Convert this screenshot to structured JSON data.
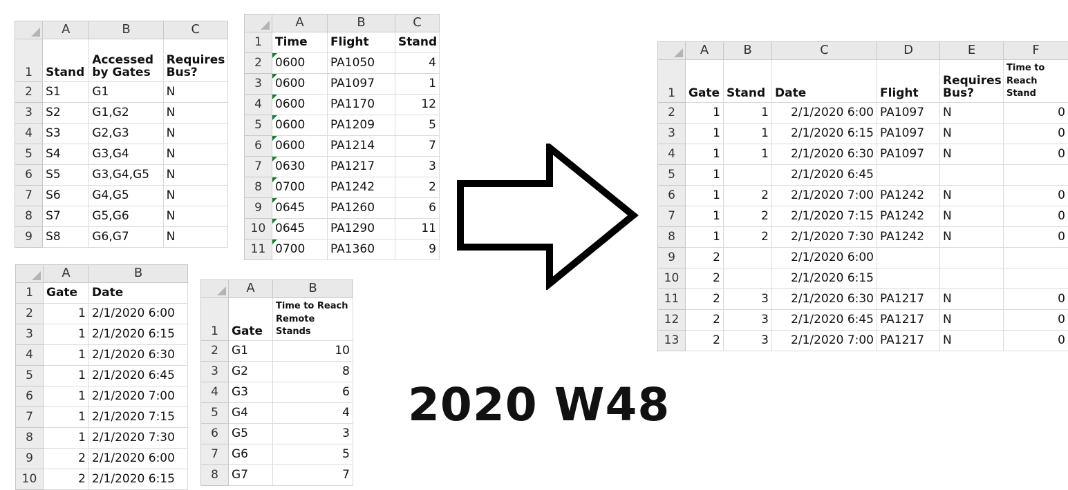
{
  "title": "2020 W48",
  "stands_table": {
    "columns": [
      "A",
      "B",
      "C"
    ],
    "header": [
      "Stand",
      "Accessed by Gates",
      "Requires Bus?"
    ],
    "rows": [
      [
        "S1",
        "G1",
        "N"
      ],
      [
        "S2",
        "G1,G2",
        "N"
      ],
      [
        "S3",
        "G2,G3",
        "N"
      ],
      [
        "S4",
        "G3,G4",
        "N"
      ],
      [
        "S5",
        "G3,G4,G5",
        "N"
      ],
      [
        "S6",
        "G4,G5",
        "N"
      ],
      [
        "S7",
        "G5,G6",
        "N"
      ],
      [
        "S8",
        "G6,G7",
        "N"
      ]
    ]
  },
  "flights_table": {
    "columns": [
      "A",
      "B",
      "C"
    ],
    "header": [
      "Time",
      "Flight",
      "Stand"
    ],
    "rows": [
      [
        "0600",
        "PA1050",
        "4"
      ],
      [
        "0600",
        "PA1097",
        "1"
      ],
      [
        "0600",
        "PA1170",
        "12"
      ],
      [
        "0600",
        "PA1209",
        "5"
      ],
      [
        "0600",
        "PA1214",
        "7"
      ],
      [
        "0630",
        "PA1217",
        "3"
      ],
      [
        "0700",
        "PA1242",
        "2"
      ],
      [
        "0645",
        "PA1260",
        "6"
      ],
      [
        "0645",
        "PA1290",
        "11"
      ],
      [
        "0700",
        "PA1360",
        "9"
      ]
    ]
  },
  "gates_table": {
    "columns": [
      "A",
      "B"
    ],
    "header": [
      "Gate",
      "Date"
    ],
    "rows": [
      [
        "1",
        "2/1/2020 6:00"
      ],
      [
        "1",
        "2/1/2020 6:15"
      ],
      [
        "1",
        "2/1/2020 6:30"
      ],
      [
        "1",
        "2/1/2020 6:45"
      ],
      [
        "1",
        "2/1/2020 7:00"
      ],
      [
        "1",
        "2/1/2020 7:15"
      ],
      [
        "1",
        "2/1/2020 7:30"
      ],
      [
        "2",
        "2/1/2020 6:00"
      ],
      [
        "2",
        "2/1/2020 6:15"
      ]
    ]
  },
  "remote_table": {
    "columns": [
      "A",
      "B"
    ],
    "header": [
      "Gate",
      "Time to Reach Remote Stands"
    ],
    "rows": [
      [
        "G1",
        "10"
      ],
      [
        "G2",
        "8"
      ],
      [
        "G3",
        "6"
      ],
      [
        "G4",
        "4"
      ],
      [
        "G5",
        "3"
      ],
      [
        "G6",
        "5"
      ],
      [
        "G7",
        "7"
      ]
    ]
  },
  "output_table": {
    "columns": [
      "A",
      "B",
      "C",
      "D",
      "E",
      "F"
    ],
    "header": [
      "Gate",
      "Stand",
      "Date",
      "Flight",
      "Requires Bus?",
      "Time to Reach Stand"
    ],
    "rows": [
      [
        "1",
        "1",
        "2/1/2020 6:00",
        "PA1097",
        "N",
        "0"
      ],
      [
        "1",
        "1",
        "2/1/2020 6:15",
        "PA1097",
        "N",
        "0"
      ],
      [
        "1",
        "1",
        "2/1/2020 6:30",
        "PA1097",
        "N",
        "0"
      ],
      [
        "1",
        "",
        "2/1/2020 6:45",
        "",
        "",
        ""
      ],
      [
        "1",
        "2",
        "2/1/2020 7:00",
        "PA1242",
        "N",
        "0"
      ],
      [
        "1",
        "2",
        "2/1/2020 7:15",
        "PA1242",
        "N",
        "0"
      ],
      [
        "1",
        "2",
        "2/1/2020 7:30",
        "PA1242",
        "N",
        "0"
      ],
      [
        "2",
        "",
        "2/1/2020 6:00",
        "",
        "",
        ""
      ],
      [
        "2",
        "",
        "2/1/2020 6:15",
        "",
        "",
        ""
      ],
      [
        "2",
        "3",
        "2/1/2020 6:30",
        "PA1217",
        "N",
        "0"
      ],
      [
        "2",
        "3",
        "2/1/2020 6:45",
        "PA1217",
        "N",
        "0"
      ],
      [
        "2",
        "3",
        "2/1/2020 7:00",
        "PA1217",
        "N",
        "0"
      ]
    ]
  }
}
